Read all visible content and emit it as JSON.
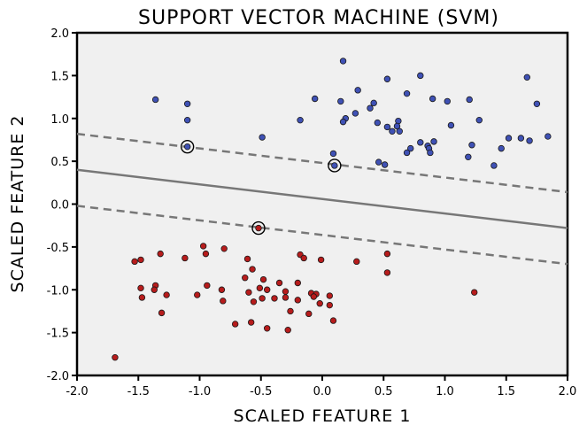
{
  "chart_data": {
    "type": "scatter",
    "title": "SUPPORT VECTOR MACHINE (SVM)",
    "xlabel": "SCALED FEATURE 1",
    "ylabel": "SCALED FEATURE 2",
    "xlim": [
      -2.0,
      2.0
    ],
    "ylim": [
      -2.0,
      2.0
    ],
    "x_ticks": [
      "-2.0",
      "-1.5",
      "-1.0",
      "-0.5",
      "0.0",
      "0.5",
      "1.0",
      "1.5",
      "2.0"
    ],
    "y_ticks": [
      "2.0",
      "1.5",
      "1.0",
      "0.5",
      "0.0",
      "-0.5",
      "-1.0",
      "-1.5",
      "-2.0"
    ],
    "grid": false,
    "background": "#f0f0f0",
    "series": [
      {
        "color": "#3f51b5",
        "points": [
          [
            0.17,
            1.67
          ],
          [
            0.8,
            1.5
          ],
          [
            0.53,
            1.46
          ],
          [
            1.67,
            1.48
          ],
          [
            0.29,
            1.33
          ],
          [
            0.69,
            1.29
          ],
          [
            -1.36,
            1.22
          ],
          [
            -0.06,
            1.23
          ],
          [
            0.42,
            1.18
          ],
          [
            0.9,
            1.23
          ],
          [
            1.2,
            1.22
          ],
          [
            0.15,
            1.2
          ],
          [
            0.39,
            1.12
          ],
          [
            1.02,
            1.2
          ],
          [
            -1.1,
            1.17
          ],
          [
            1.75,
            1.17
          ],
          [
            0.27,
            1.06
          ],
          [
            0.19,
            1.0
          ],
          [
            0.62,
            0.97
          ],
          [
            0.45,
            0.95
          ],
          [
            1.28,
            0.98
          ],
          [
            -0.18,
            0.98
          ],
          [
            -1.1,
            0.98
          ],
          [
            0.17,
            0.96
          ],
          [
            0.53,
            0.9
          ],
          [
            0.61,
            0.91
          ],
          [
            0.57,
            0.85
          ],
          [
            1.05,
            0.92
          ],
          [
            0.63,
            0.85
          ],
          [
            -0.49,
            0.78
          ],
          [
            1.84,
            0.79
          ],
          [
            1.62,
            0.77
          ],
          [
            1.52,
            0.77
          ],
          [
            0.8,
            0.72
          ],
          [
            0.91,
            0.73
          ],
          [
            0.86,
            0.68
          ],
          [
            1.69,
            0.74
          ],
          [
            1.22,
            0.69
          ],
          [
            0.72,
            0.65
          ],
          [
            0.87,
            0.65
          ],
          [
            1.46,
            0.65
          ],
          [
            0.09,
            0.59
          ],
          [
            0.88,
            0.6
          ],
          [
            0.69,
            0.6
          ],
          [
            1.19,
            0.55
          ],
          [
            0.46,
            0.49
          ],
          [
            1.4,
            0.45
          ],
          [
            0.51,
            0.46
          ],
          [
            -1.1,
            0.67
          ],
          [
            0.1,
            0.45
          ]
        ]
      },
      {
        "color": "#b71c1c",
        "points": [
          [
            -1.12,
            -0.63
          ],
          [
            -1.48,
            -0.65
          ],
          [
            -1.53,
            -0.67
          ],
          [
            -0.97,
            -0.49
          ],
          [
            -1.32,
            -0.58
          ],
          [
            -0.95,
            -0.58
          ],
          [
            -0.8,
            -0.52
          ],
          [
            -0.61,
            -0.64
          ],
          [
            -0.18,
            -0.59
          ],
          [
            0.53,
            -0.58
          ],
          [
            0.28,
            -0.67
          ],
          [
            -0.15,
            -0.63
          ],
          [
            -0.57,
            -0.76
          ],
          [
            0.53,
            -0.8
          ],
          [
            -0.01,
            -0.65
          ],
          [
            1.24,
            -1.03
          ],
          [
            -0.63,
            -0.86
          ],
          [
            -0.48,
            -0.88
          ],
          [
            -0.35,
            -0.92
          ],
          [
            -0.2,
            -0.92
          ],
          [
            -0.94,
            -0.95
          ],
          [
            -1.36,
            -0.95
          ],
          [
            -1.48,
            -0.98
          ],
          [
            -1.37,
            -1.0
          ],
          [
            -0.09,
            -1.04
          ],
          [
            -0.51,
            -0.98
          ],
          [
            -0.82,
            -1.0
          ],
          [
            -0.3,
            -1.02
          ],
          [
            -0.45,
            -1.0
          ],
          [
            -1.27,
            -1.06
          ],
          [
            -0.05,
            -1.05
          ],
          [
            -1.02,
            -1.06
          ],
          [
            0.06,
            -1.07
          ],
          [
            -0.6,
            -1.03
          ],
          [
            -1.47,
            -1.09
          ],
          [
            -0.07,
            -1.08
          ],
          [
            -0.3,
            -1.09
          ],
          [
            -0.39,
            -1.1
          ],
          [
            -0.2,
            -1.12
          ],
          [
            -0.49,
            -1.1
          ],
          [
            -0.81,
            -1.13
          ],
          [
            -0.56,
            -1.14
          ],
          [
            -0.02,
            -1.16
          ],
          [
            0.06,
            -1.18
          ],
          [
            -1.31,
            -1.27
          ],
          [
            -0.26,
            -1.25
          ],
          [
            -0.11,
            -1.28
          ],
          [
            -0.71,
            -1.4
          ],
          [
            0.09,
            -1.36
          ],
          [
            -0.58,
            -1.38
          ],
          [
            -0.45,
            -1.45
          ],
          [
            -0.28,
            -1.47
          ],
          [
            -1.69,
            -1.79
          ],
          [
            -0.52,
            -0.28
          ]
        ]
      }
    ],
    "support_vectors": [
      [
        -1.1,
        0.67
      ],
      [
        0.1,
        0.45
      ],
      [
        -0.52,
        -0.28
      ]
    ],
    "decision_boundary": {
      "slope": -0.17,
      "intercept": 0.06,
      "margin": 0.42,
      "line_color": "#777777"
    }
  }
}
